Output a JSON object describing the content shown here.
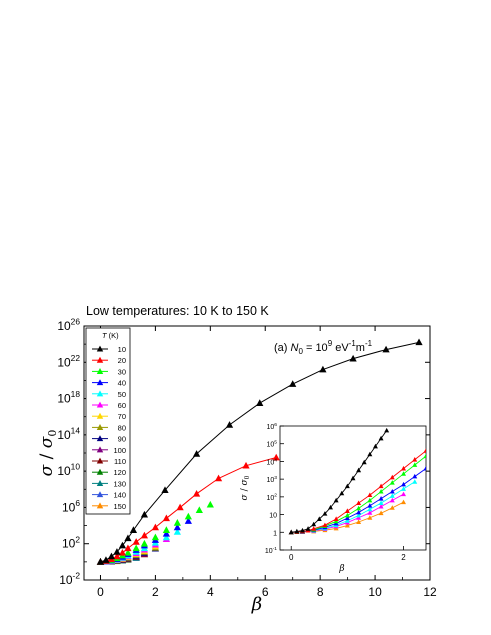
{
  "header": {
    "title": "Low temperatures: 10 K to 150 K"
  },
  "chart_data": [
    {
      "type": "scatter",
      "panel": "main",
      "annotation": {
        "prefix": "(a) ",
        "n": "N",
        "n_sub": "0",
        "eq": " = 10",
        "exp": "9",
        "unit": " eV",
        "unit_exp1": "-1",
        "unit_m": "m",
        "unit_exp2": "-1"
      },
      "xlabel": "β",
      "ylabel": {
        "a": "σ",
        "slash": " / ",
        "b": "σ",
        "b_sub": "0"
      },
      "x_scale": "linear",
      "y_scale": "log",
      "xlim": [
        -0.6,
        12
      ],
      "ylim_log10": [
        -2,
        26
      ],
      "x_ticks": [
        0,
        2,
        4,
        6,
        8,
        10,
        12
      ],
      "y_ticks": [
        {
          "base": "10",
          "exp": "-2",
          "v": -2
        },
        {
          "base": "10",
          "exp": "2",
          "v": 2
        },
        {
          "base": "10",
          "exp": "6",
          "v": 6
        },
        {
          "base": "10",
          "exp": "10",
          "v": 10
        },
        {
          "base": "10",
          "exp": "14",
          "v": 14
        },
        {
          "base": "10",
          "exp": "18",
          "v": 18
        },
        {
          "base": "10",
          "exp": "22",
          "v": 22
        },
        {
          "base": "10",
          "exp": "26",
          "v": 26
        }
      ],
      "legend": {
        "title": "T",
        "title_unit": " (K)",
        "position": "top-left"
      },
      "series": [
        {
          "name": "10",
          "color": "#000000",
          "line": true,
          "x": [
            0,
            0.2,
            0.4,
            0.6,
            0.8,
            1.0,
            1.2,
            1.6,
            2.35,
            3.5,
            4.7,
            5.8,
            7.0,
            8.1,
            9.2,
            10.4,
            11.6
          ],
          "log10y": [
            0,
            0.2,
            0.6,
            1.1,
            1.8,
            2.6,
            3.5,
            5.2,
            7.9,
            11.9,
            15.1,
            17.5,
            19.6,
            21.2,
            22.4,
            23.4,
            24.2
          ]
        },
        {
          "name": "20",
          "color": "#ff0000",
          "line": true,
          "x": [
            0,
            0.2,
            0.4,
            0.6,
            0.8,
            1.0,
            1.3,
            1.6,
            2.0,
            2.4,
            2.9,
            3.5,
            4.3,
            5.3,
            6.4
          ],
          "log10y": [
            0,
            0.1,
            0.3,
            0.6,
            1.0,
            1.5,
            2.2,
            2.9,
            3.8,
            4.8,
            6.0,
            7.5,
            9.2,
            10.6,
            11.5
          ]
        },
        {
          "name": "30",
          "color": "#00ff00",
          "line": false,
          "x": [
            0,
            0.2,
            0.4,
            0.6,
            0.8,
            1.0,
            1.3,
            1.6,
            2.0,
            2.4,
            2.8,
            3.2,
            3.6,
            4.0
          ],
          "log10y": [
            0,
            0.1,
            0.2,
            0.4,
            0.7,
            1.0,
            1.5,
            2.0,
            2.7,
            3.5,
            4.3,
            5.0,
            5.7,
            6.3
          ]
        },
        {
          "name": "40",
          "color": "#0000ff",
          "line": false,
          "x": [
            0,
            0.2,
            0.4,
            0.6,
            0.8,
            1.0,
            1.3,
            1.6,
            2.0,
            2.4,
            2.8,
            3.2
          ],
          "log10y": [
            0,
            0.05,
            0.15,
            0.3,
            0.55,
            0.85,
            1.3,
            1.8,
            2.4,
            3.1,
            3.8,
            4.5
          ]
        },
        {
          "name": "50",
          "color": "#00ffff",
          "line": false,
          "x": [
            0,
            0.2,
            0.4,
            0.6,
            0.8,
            1.0,
            1.3,
            1.6,
            2.0,
            2.4,
            2.8
          ],
          "log10y": [
            0,
            0.05,
            0.12,
            0.25,
            0.45,
            0.7,
            1.1,
            1.5,
            2.1,
            2.7,
            3.3
          ]
        },
        {
          "name": "60",
          "color": "#ff00ff",
          "line": false,
          "x": [
            0,
            0.2,
            0.4,
            0.6,
            0.8,
            1.0,
            1.3,
            1.6,
            2.0,
            2.4
          ],
          "log10y": [
            0,
            0.04,
            0.1,
            0.2,
            0.38,
            0.6,
            0.95,
            1.35,
            1.9,
            2.5
          ]
        },
        {
          "name": "70",
          "color": "#ffd700",
          "line": false,
          "x": [
            0,
            0.2,
            0.4,
            0.6,
            0.8,
            1.0,
            1.3,
            1.6,
            2.0
          ],
          "log10y": [
            0,
            0.04,
            0.09,
            0.18,
            0.32,
            0.5,
            0.85,
            1.2,
            1.7
          ]
        },
        {
          "name": "80",
          "color": "#999900",
          "line": false,
          "x": [
            0,
            0.2,
            0.4,
            0.6,
            0.8,
            1.0,
            1.3,
            1.6,
            2.0
          ],
          "log10y": [
            0,
            0.03,
            0.08,
            0.16,
            0.28,
            0.45,
            0.75,
            1.1,
            1.55
          ]
        },
        {
          "name": "90",
          "color": "#000080",
          "line": false,
          "x": [
            0,
            0.2,
            0.4,
            0.6,
            0.8,
            1.0,
            1.3,
            1.6,
            2.0
          ],
          "log10y": [
            0,
            0.03,
            0.07,
            0.14,
            0.25,
            0.4,
            0.68,
            1.0,
            1.45
          ]
        },
        {
          "name": "100",
          "color": "#800080",
          "line": false,
          "x": [
            0,
            0.2,
            0.4,
            0.6,
            0.8,
            1.0,
            1.3,
            1.6
          ],
          "log10y": [
            0,
            0.03,
            0.06,
            0.13,
            0.22,
            0.36,
            0.6,
            0.9
          ]
        },
        {
          "name": "110",
          "color": "#800000",
          "line": false,
          "x": [
            0,
            0.2,
            0.4,
            0.6,
            0.8,
            1.0,
            1.3,
            1.6
          ],
          "log10y": [
            0,
            0.02,
            0.05,
            0.11,
            0.2,
            0.32,
            0.55,
            0.82
          ]
        },
        {
          "name": "120",
          "color": "#008000",
          "line": false,
          "x": [
            0,
            0.2,
            0.4,
            0.6,
            0.8,
            1.0,
            1.3
          ],
          "log10y": [
            0,
            0.02,
            0.05,
            0.1,
            0.18,
            0.29,
            0.5
          ]
        },
        {
          "name": "130",
          "color": "#008080",
          "line": false,
          "x": [
            0,
            0.2,
            0.4,
            0.6,
            0.8,
            1.0,
            1.3
          ],
          "log10y": [
            0,
            0.02,
            0.04,
            0.09,
            0.16,
            0.26,
            0.45
          ]
        },
        {
          "name": "140",
          "color": "#3355dd",
          "line": false,
          "x": [
            0,
            0.2,
            0.4,
            0.6,
            0.8,
            1.0,
            1.3
          ],
          "log10y": [
            0,
            0.02,
            0.04,
            0.08,
            0.15,
            0.24,
            0.42
          ]
        },
        {
          "name": "150",
          "color": "#ff8c00",
          "line": false,
          "x": [
            0,
            0.2,
            0.4,
            0.6,
            0.8,
            1.0
          ],
          "log10y": [
            0,
            0.02,
            0.035,
            0.07,
            0.13,
            0.21
          ]
        }
      ]
    },
    {
      "type": "line",
      "panel": "inset",
      "xlabel": "β",
      "ylabel": {
        "a": "σ",
        "slash": " / ",
        "b": "σ",
        "b_sub": "0"
      },
      "x_scale": "linear",
      "y_scale": "log",
      "xlim": [
        -0.2,
        2.4
      ],
      "ylim_log10": [
        -1,
        6
      ],
      "x_ticks": [
        0,
        2
      ],
      "y_ticks": [
        {
          "base": "10",
          "exp": "-1",
          "v": -1
        },
        {
          "base": "",
          "exp": "",
          "label": "1",
          "v": 0
        },
        {
          "base": "10",
          "exp": "",
          "v": 1
        },
        {
          "base": "10",
          "exp": "2",
          "v": 2
        },
        {
          "base": "10",
          "exp": "3",
          "v": 3
        },
        {
          "base": "10",
          "exp": "4",
          "v": 4
        },
        {
          "base": "10",
          "exp": "5",
          "v": 5
        },
        {
          "base": "10",
          "exp": "6",
          "v": 6
        }
      ],
      "series": [
        {
          "name": "10",
          "color": "#000000",
          "x": [
            0,
            0.1,
            0.2,
            0.3,
            0.4,
            0.5,
            0.6,
            0.7,
            0.8,
            0.9,
            1.0,
            1.1,
            1.2,
            1.3,
            1.4,
            1.5,
            1.6,
            1.7
          ],
          "log10y": [
            0,
            0.05,
            0.1,
            0.2,
            0.45,
            0.75,
            1.05,
            1.4,
            1.8,
            2.2,
            2.6,
            3.05,
            3.5,
            3.95,
            4.4,
            4.85,
            5.3,
            5.75
          ]
        },
        {
          "name": "20",
          "color": "#ff0000",
          "x": [
            0,
            0.1,
            0.2,
            0.3,
            0.4,
            0.6,
            0.8,
            1.0,
            1.2,
            1.4,
            1.6,
            1.8,
            2.0,
            2.2,
            2.4
          ],
          "log10y": [
            0,
            0.02,
            0.05,
            0.1,
            0.2,
            0.4,
            0.75,
            1.2,
            1.65,
            2.1,
            2.6,
            3.1,
            3.6,
            4.1,
            4.6
          ]
        },
        {
          "name": "30",
          "color": "#00ff00",
          "x": [
            0,
            0.1,
            0.2,
            0.4,
            0.6,
            0.8,
            1.0,
            1.2,
            1.4,
            1.6,
            1.8,
            2.0,
            2.2,
            2.4
          ],
          "log10y": [
            0,
            0.02,
            0.04,
            0.15,
            0.35,
            0.62,
            0.95,
            1.35,
            1.8,
            2.3,
            2.8,
            3.3,
            3.8,
            4.3
          ]
        },
        {
          "name": "40",
          "color": "#0000ff",
          "x": [
            0,
            0.1,
            0.2,
            0.4,
            0.6,
            0.8,
            1.0,
            1.2,
            1.4,
            1.6,
            1.8,
            2.0,
            2.2,
            2.4
          ],
          "log10y": [
            0,
            0.02,
            0.03,
            0.12,
            0.28,
            0.5,
            0.8,
            1.12,
            1.5,
            1.9,
            2.3,
            2.7,
            3.15,
            3.6
          ]
        },
        {
          "name": "50",
          "color": "#00ffff",
          "x": [
            0,
            0.1,
            0.2,
            0.4,
            0.6,
            0.8,
            1.0,
            1.2,
            1.4,
            1.6,
            1.8,
            2.0,
            2.2
          ],
          "log10y": [
            0,
            0.015,
            0.03,
            0.1,
            0.22,
            0.4,
            0.65,
            0.95,
            1.3,
            1.65,
            2.05,
            2.45,
            2.85
          ]
        },
        {
          "name": "60",
          "color": "#ff00ff",
          "x": [
            0,
            0.2,
            0.4,
            0.6,
            0.8,
            1.0,
            1.2,
            1.4,
            1.6,
            1.8,
            2.0
          ],
          "log10y": [
            0,
            0.03,
            0.08,
            0.18,
            0.33,
            0.55,
            0.82,
            1.1,
            1.45,
            1.8,
            2.15
          ]
        },
        {
          "name": "150",
          "color": "#ff8c00",
          "x": [
            0,
            0.2,
            0.4,
            0.6,
            0.8,
            1.0,
            1.2,
            1.4,
            1.6,
            1.8,
            2.0
          ],
          "log10y": [
            0,
            0.02,
            0.05,
            0.12,
            0.22,
            0.38,
            0.58,
            0.82,
            1.08,
            1.38,
            1.7
          ]
        }
      ]
    }
  ]
}
